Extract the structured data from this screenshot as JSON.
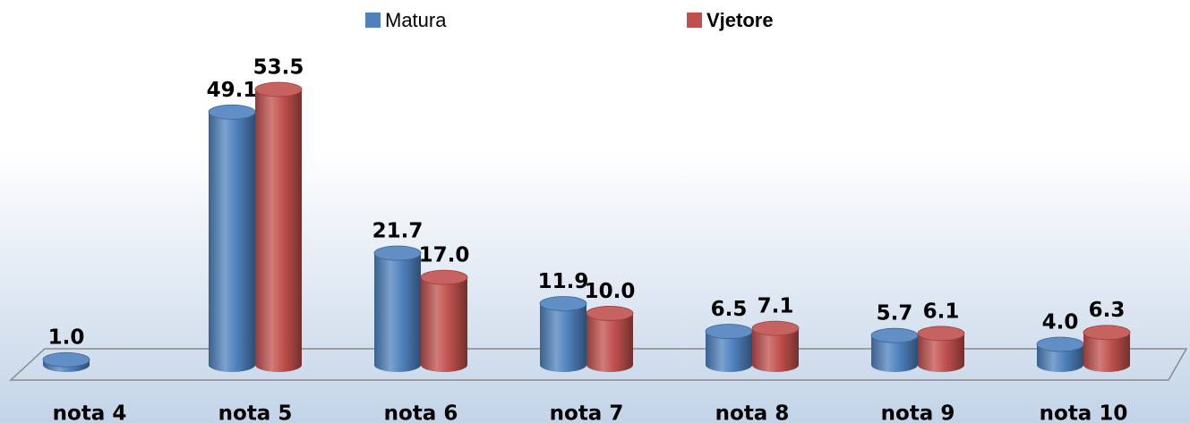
{
  "chart_data": {
    "type": "bar3d",
    "categories": [
      "nota 4",
      "nota 5",
      "nota 6",
      "nota 7",
      "nota 8",
      "nota 9",
      "nota 10"
    ],
    "series": [
      {
        "name": "Matura",
        "color": "#4f81bd",
        "values": [
          1.0,
          49.1,
          21.7,
          11.9,
          6.5,
          5.7,
          4.0
        ],
        "value_labels": [
          "1.0",
          "49.1",
          "21.7",
          "11.9",
          "6.5",
          "5.7",
          "4.0"
        ]
      },
      {
        "name": "Vjetore",
        "color": "#c0504d",
        "values": [
          null,
          53.5,
          17.0,
          10.0,
          7.1,
          6.1,
          6.3
        ],
        "value_labels": [
          null,
          "53.5",
          "17.0",
          "10.0",
          "7.1",
          "6.1",
          "6.3"
        ]
      }
    ]
  }
}
